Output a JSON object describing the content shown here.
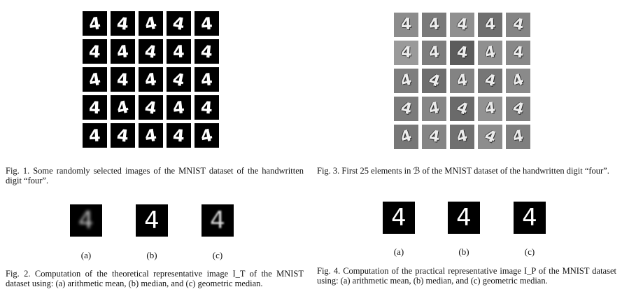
{
  "fig1": {
    "caption": "Fig. 1.  Some randomly selected images of the MNIST dataset of the handwritten digit “four”.",
    "digits": [
      "4",
      "4",
      "4",
      "4",
      "4",
      "4",
      "4",
      "4",
      "4",
      "4",
      "4",
      "4",
      "4",
      "4",
      "4",
      "4",
      "4",
      "4",
      "4",
      "4",
      "4",
      "4",
      "4",
      "4",
      "4"
    ]
  },
  "fig3": {
    "caption": "Fig. 3.  First 25 elements in ℬ of the MNIST dataset of the handwritten digit “four”.",
    "tiles": [
      "4",
      "4",
      "4",
      "4",
      "4",
      "4",
      "4",
      "4",
      "4",
      "4",
      "4",
      "4",
      "4",
      "4",
      "4",
      "4",
      "4",
      "4",
      "4",
      "4",
      "4",
      "4",
      "4",
      "4",
      "4"
    ]
  },
  "fig2": {
    "caption": "Fig. 2.  Computation of the theoretical representative image I_T of the MNIST dataset using: (a) arithmetic mean, (b) median, and (c) geometric median.",
    "labels": [
      "(a)",
      "(b)",
      "(c)"
    ],
    "digit": "4"
  },
  "fig4": {
    "caption": "Fig. 4.  Computation of the practical representative image I_P of the MNIST dataset using: (a) arithmetic mean, (b) median, and (c) geometric median.",
    "labels": [
      "(a)",
      "(b)",
      "(c)"
    ],
    "digit": "4"
  }
}
